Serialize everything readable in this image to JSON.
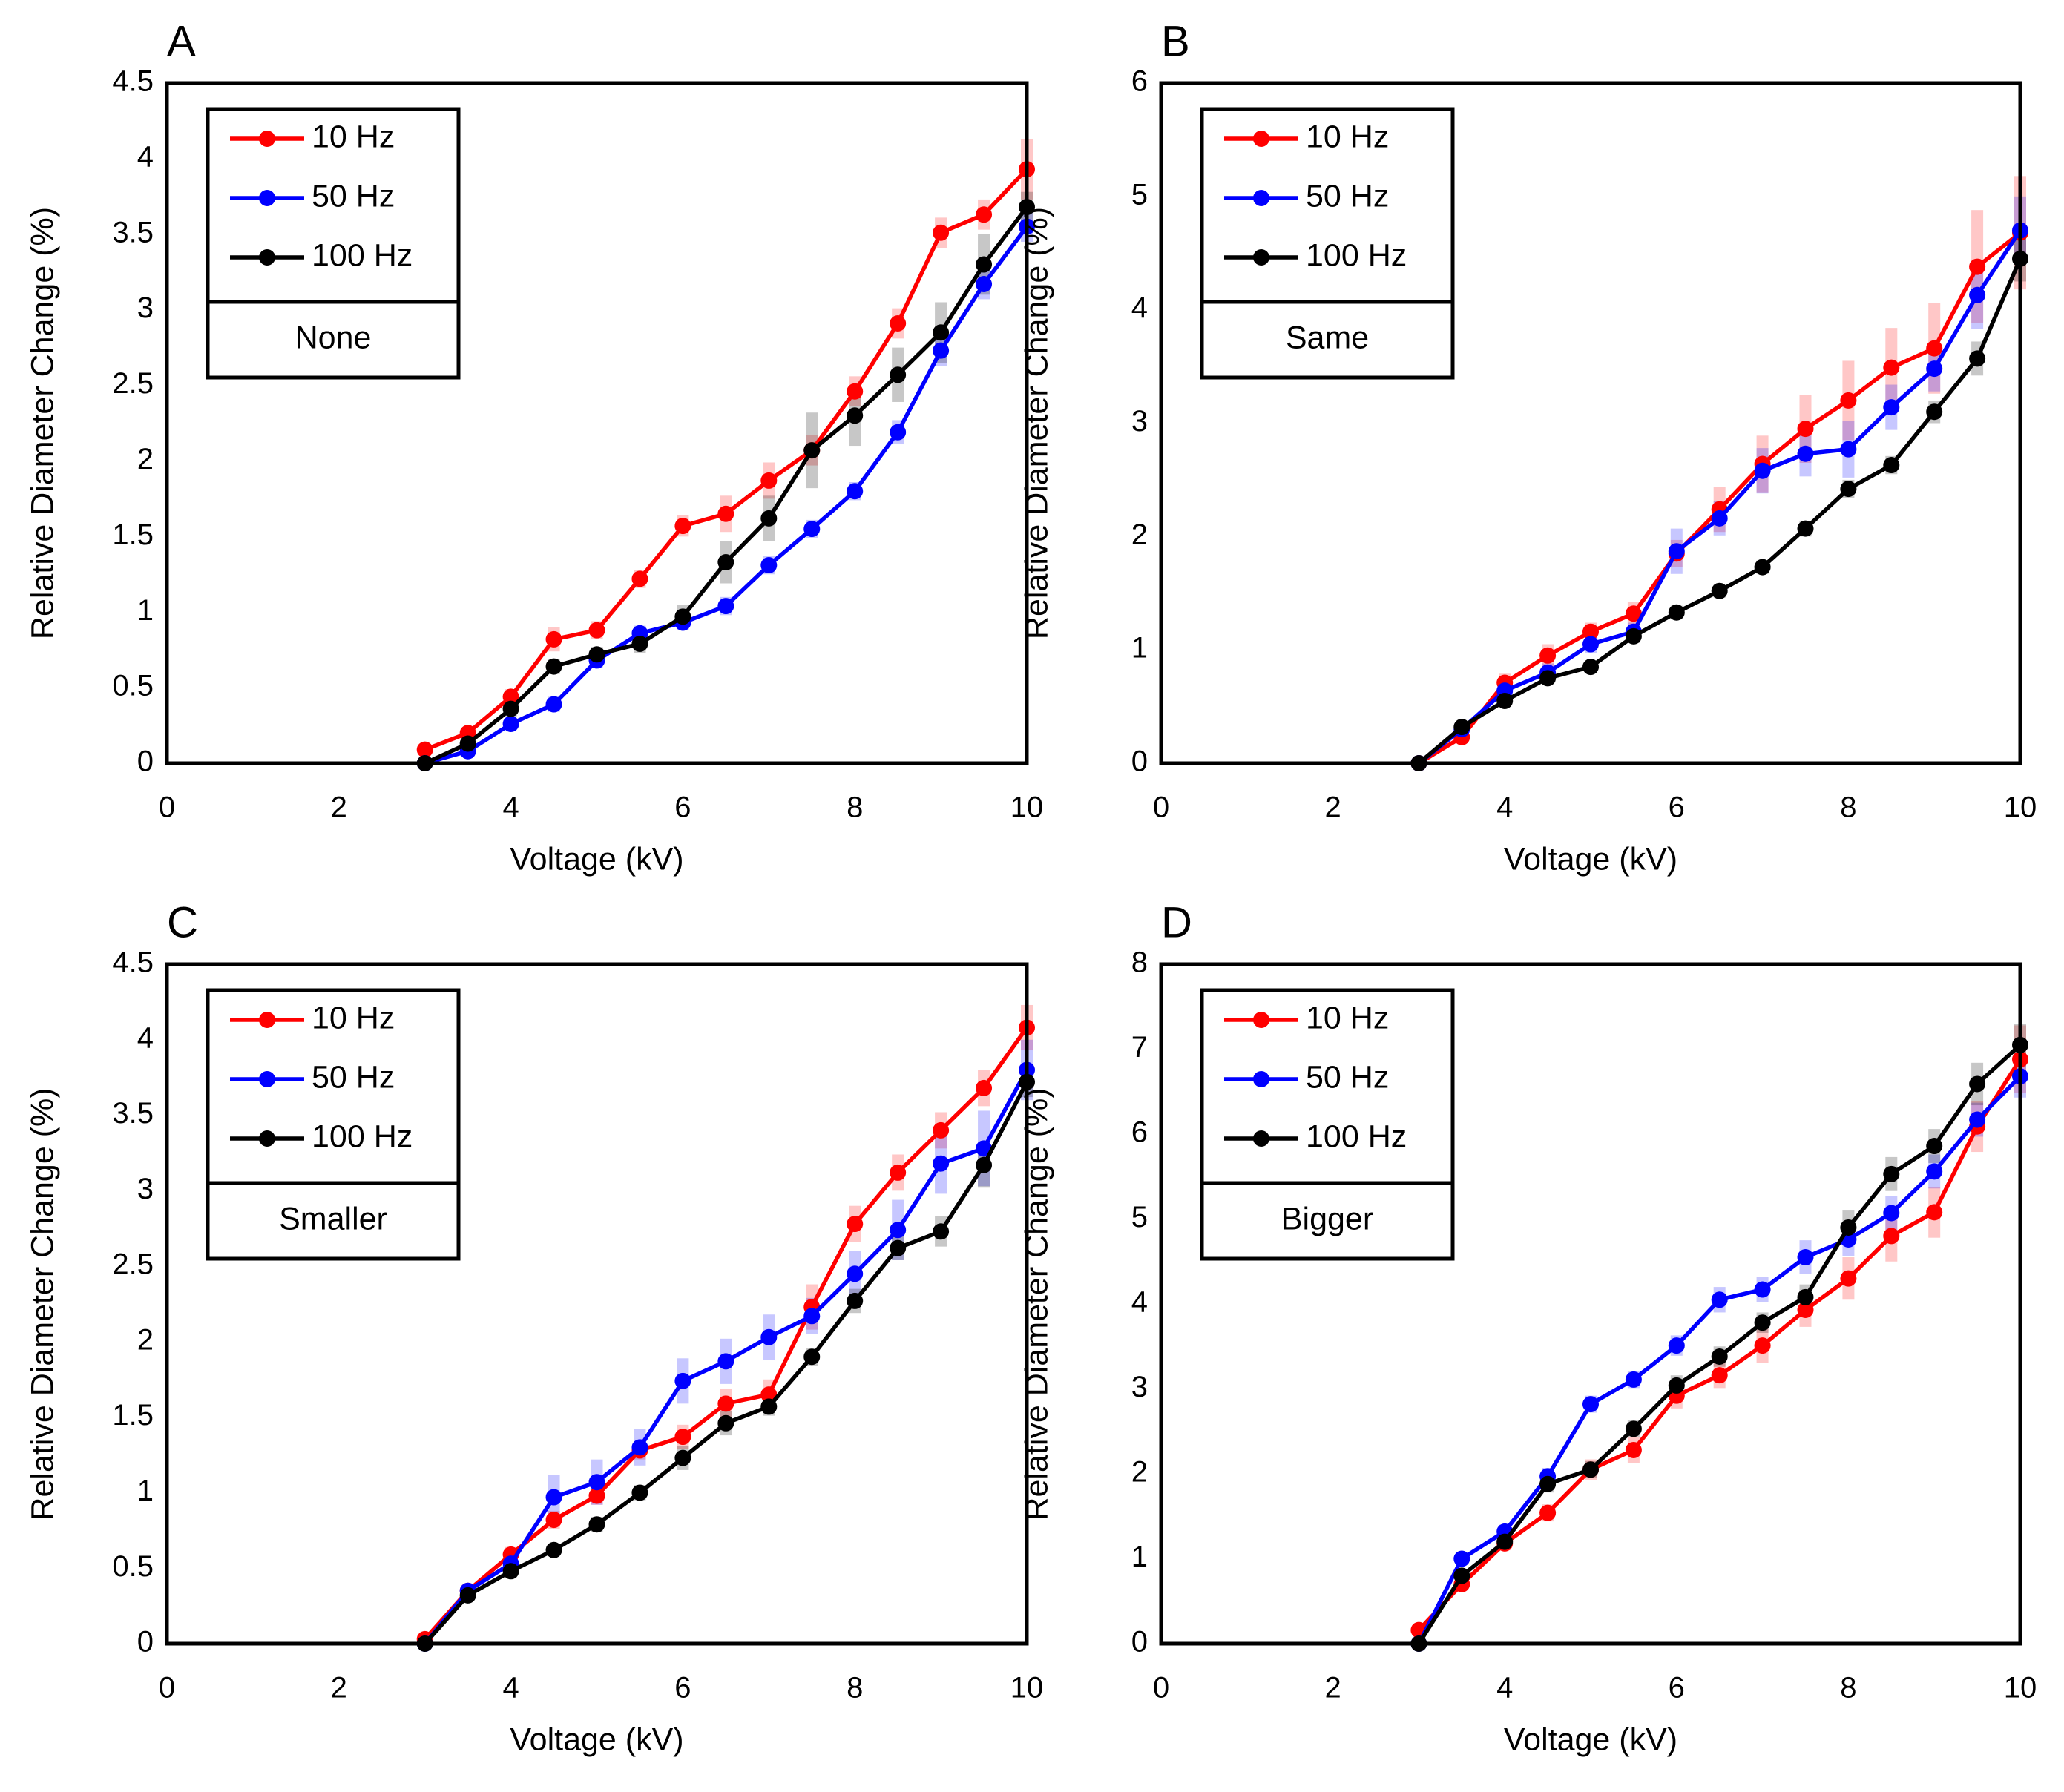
{
  "chart_data": [
    {
      "type": "line",
      "label": "A",
      "condition": "None",
      "xlabel": "Voltage (kV)",
      "ylabel": "Relative Diameter Change (%)",
      "x": [
        3,
        3.5,
        4,
        4.5,
        5,
        5.5,
        6,
        6.5,
        7,
        7.5,
        8,
        8.5,
        9,
        9.5,
        10
      ],
      "xlim": [
        0,
        10
      ],
      "xticks": [
        0,
        2,
        4,
        6,
        8,
        10
      ],
      "ylim": [
        0,
        4.5
      ],
      "yticks": [
        0,
        0.5,
        1,
        1.5,
        2,
        2.5,
        3,
        3.5,
        4,
        4.5
      ],
      "series": [
        {
          "name": "10 Hz",
          "color": "#ff0000",
          "values": [
            0.09,
            0.2,
            0.44,
            0.82,
            0.88,
            1.22,
            1.57,
            1.65,
            1.87,
            2.07,
            2.46,
            2.91,
            3.51,
            3.63,
            3.93
          ],
          "errors": [
            0.02,
            0.03,
            0.05,
            0.08,
            0.06,
            0.06,
            0.07,
            0.12,
            0.12,
            0.1,
            0.1,
            0.1,
            0.1,
            0.1,
            0.2
          ]
        },
        {
          "name": "50 Hz",
          "color": "#0000ff",
          "values": [
            0,
            0.08,
            0.26,
            0.39,
            0.68,
            0.86,
            0.93,
            1.04,
            1.31,
            1.55,
            1.8,
            2.19,
            2.73,
            3.17,
            3.55
          ],
          "errors": [
            0.02,
            0.03,
            0.04,
            0.05,
            0.05,
            0.05,
            0.05,
            0.06,
            0.06,
            0.06,
            0.06,
            0.08,
            0.1,
            0.1,
            0.1
          ]
        },
        {
          "name": "100 Hz",
          "color": "#000000",
          "values": [
            0,
            0.13,
            0.36,
            0.64,
            0.72,
            0.79,
            0.97,
            1.33,
            1.62,
            2.07,
            2.3,
            2.57,
            2.85,
            3.3,
            3.68
          ],
          "errors": [
            0.02,
            0.03,
            0.05,
            0.05,
            0.05,
            0.06,
            0.08,
            0.14,
            0.15,
            0.25,
            0.2,
            0.18,
            0.2,
            0.2,
            0.1
          ]
        }
      ]
    },
    {
      "type": "line",
      "label": "B",
      "condition": "Same",
      "xlabel": "Voltage (kV)",
      "ylabel": "Relative Diameter Change (%)",
      "x": [
        3,
        3.5,
        4,
        4.5,
        5,
        5.5,
        6,
        6.5,
        7,
        7.5,
        8,
        8.5,
        9,
        9.5,
        10
      ],
      "xlim": [
        0,
        10
      ],
      "xticks": [
        0,
        2,
        4,
        6,
        8,
        10
      ],
      "ylim": [
        0,
        6
      ],
      "yticks": [
        0,
        1,
        2,
        3,
        4,
        5,
        6
      ],
      "series": [
        {
          "name": "10 Hz",
          "color": "#ff0000",
          "values": [
            0,
            0.23,
            0.71,
            0.95,
            1.16,
            1.32,
            1.85,
            2.24,
            2.64,
            2.95,
            3.2,
            3.49,
            3.66,
            4.38,
            4.68
          ],
          "errors": [
            0.02,
            0.05,
            0.08,
            0.1,
            0.08,
            0.1,
            0.12,
            0.2,
            0.25,
            0.3,
            0.35,
            0.35,
            0.4,
            0.5,
            0.5
          ]
        },
        {
          "name": "50 Hz",
          "color": "#0000ff",
          "values": [
            0,
            0.3,
            0.64,
            0.8,
            1.05,
            1.16,
            1.87,
            2.16,
            2.58,
            2.73,
            2.77,
            3.14,
            3.48,
            4.13,
            4.7
          ],
          "errors": [
            0.02,
            0.05,
            0.06,
            0.08,
            0.08,
            0.08,
            0.2,
            0.15,
            0.2,
            0.2,
            0.25,
            0.2,
            0.2,
            0.3,
            0.3
          ]
        },
        {
          "name": "100 Hz",
          "color": "#000000",
          "values": [
            0,
            0.32,
            0.55,
            0.75,
            0.85,
            1.12,
            1.33,
            1.52,
            1.73,
            2.07,
            2.42,
            2.63,
            3.1,
            3.57,
            4.45
          ],
          "errors": [
            0.02,
            0.04,
            0.05,
            0.05,
            0.05,
            0.06,
            0.06,
            0.06,
            0.06,
            0.07,
            0.08,
            0.08,
            0.1,
            0.15,
            0.2
          ]
        }
      ]
    },
    {
      "type": "line",
      "label": "C",
      "condition": "Smaller",
      "xlabel": "Voltage (kV)",
      "ylabel": "Relative Diameter Change (%)",
      "x": [
        3,
        3.5,
        4,
        4.5,
        5,
        5.5,
        6,
        6.5,
        7,
        7.5,
        8,
        8.5,
        9,
        9.5,
        10
      ],
      "xlim": [
        0,
        10
      ],
      "xticks": [
        0,
        2,
        4,
        6,
        8,
        10
      ],
      "ylim": [
        0,
        4.5
      ],
      "yticks": [
        0,
        0.5,
        1,
        1.5,
        2,
        2.5,
        3,
        3.5,
        4,
        4.5
      ],
      "series": [
        {
          "name": "10 Hz",
          "color": "#ff0000",
          "values": [
            0.03,
            0.35,
            0.59,
            0.82,
            0.98,
            1.28,
            1.37,
            1.59,
            1.65,
            2.23,
            2.78,
            3.12,
            3.4,
            3.68,
            4.08
          ],
          "errors": [
            0.02,
            0.04,
            0.05,
            0.06,
            0.06,
            0.06,
            0.08,
            0.1,
            0.1,
            0.15,
            0.12,
            0.12,
            0.12,
            0.12,
            0.15
          ]
        },
        {
          "name": "50 Hz",
          "color": "#0000ff",
          "values": [
            0,
            0.35,
            0.53,
            0.97,
            1.07,
            1.3,
            1.74,
            1.87,
            2.03,
            2.17,
            2.45,
            2.74,
            3.18,
            3.28,
            3.8
          ],
          "errors": [
            0.02,
            0.04,
            0.05,
            0.15,
            0.15,
            0.12,
            0.15,
            0.15,
            0.15,
            0.12,
            0.15,
            0.2,
            0.2,
            0.25,
            0.2
          ]
        },
        {
          "name": "100 Hz",
          "color": "#000000",
          "values": [
            0,
            0.32,
            0.48,
            0.62,
            0.79,
            1.0,
            1.23,
            1.46,
            1.57,
            1.9,
            2.27,
            2.62,
            2.73,
            3.17,
            3.72
          ],
          "errors": [
            0.02,
            0.03,
            0.04,
            0.04,
            0.05,
            0.05,
            0.08,
            0.08,
            0.06,
            0.06,
            0.08,
            0.08,
            0.1,
            0.15,
            0.1
          ]
        }
      ]
    },
    {
      "type": "line",
      "label": "D",
      "condition": "Bigger",
      "xlabel": "Voltage (kV)",
      "ylabel": "Relative Diameter Change (%)",
      "x": [
        3,
        3.5,
        4,
        4.5,
        5,
        5.5,
        6,
        6.5,
        7,
        7.5,
        8,
        8.5,
        9,
        9.5,
        10
      ],
      "xlim": [
        0,
        10
      ],
      "xticks": [
        0,
        2,
        4,
        6,
        8,
        10
      ],
      "ylim": [
        0,
        8
      ],
      "yticks": [
        0,
        1,
        2,
        3,
        4,
        5,
        6,
        7,
        8
      ],
      "series": [
        {
          "name": "10 Hz",
          "color": "#ff0000",
          "values": [
            0.16,
            0.7,
            1.18,
            1.54,
            2.05,
            2.28,
            2.92,
            3.16,
            3.51,
            3.93,
            4.3,
            4.8,
            5.08,
            6.09,
            6.88
          ],
          "errors": [
            0.03,
            0.06,
            0.08,
            0.1,
            0.12,
            0.15,
            0.15,
            0.15,
            0.2,
            0.2,
            0.25,
            0.3,
            0.3,
            0.3,
            0.4
          ]
        },
        {
          "name": "50 Hz",
          "color": "#0000ff",
          "values": [
            0,
            1.0,
            1.32,
            1.97,
            2.82,
            3.11,
            3.51,
            4.05,
            4.17,
            4.55,
            4.76,
            5.07,
            5.56,
            6.17,
            6.68
          ],
          "errors": [
            0.03,
            0.06,
            0.08,
            0.1,
            0.1,
            0.1,
            0.12,
            0.15,
            0.15,
            0.2,
            0.2,
            0.2,
            0.2,
            0.2,
            0.25
          ]
        },
        {
          "name": "100 Hz",
          "color": "#000000",
          "values": [
            0,
            0.8,
            1.2,
            1.88,
            2.05,
            2.53,
            3.04,
            3.38,
            3.78,
            4.08,
            4.9,
            5.53,
            5.86,
            6.59,
            7.05
          ],
          "errors": [
            0.03,
            0.06,
            0.08,
            0.1,
            0.1,
            0.1,
            0.12,
            0.12,
            0.12,
            0.15,
            0.2,
            0.2,
            0.2,
            0.25,
            0.25
          ]
        }
      ]
    }
  ]
}
